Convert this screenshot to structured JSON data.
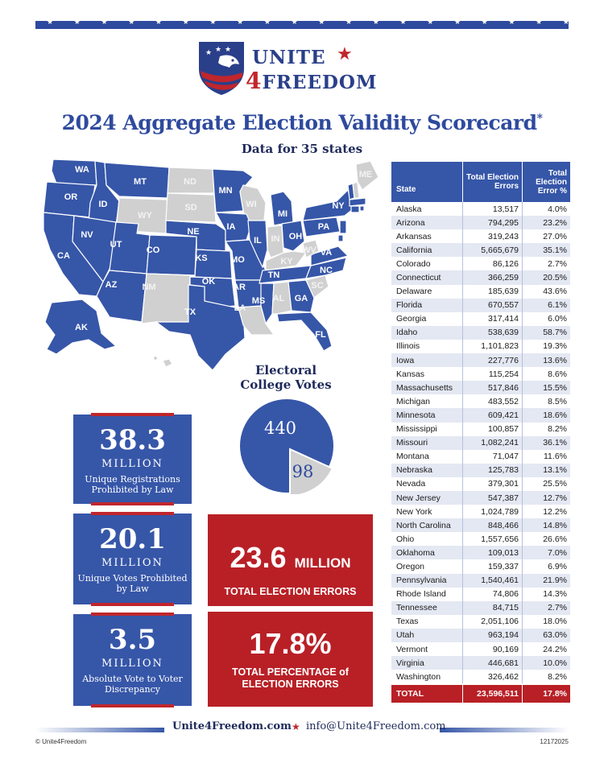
{
  "header": {
    "stars": "★ ★ ★ ★ ★ ★ ★ ★ ★ ★ ★ ★ ★ ★ ★ ★ ★ ★ ★ ★ ★ ★ ★ ★ ★ ★ ★ ★ ★ ★ ★ ★ ★",
    "logo_line1": "UNITE",
    "logo_star": "★",
    "logo_four": "4",
    "logo_line2": "FREEDOM"
  },
  "title": "2024 Aggregate Election Validity Scorecard",
  "title_asterisk": "*",
  "subtitle": "Data for 35 states",
  "colors": {
    "blue": "#3656a8",
    "red": "#b82026",
    "grey": "#d0d0d0",
    "navy": "#1e2a5a"
  },
  "map": {
    "labels": {
      "wa": "WA",
      "or": "OR",
      "id": "ID",
      "mt": "MT",
      "nd": "ND",
      "mn": "MN",
      "wy": "WY",
      "sd": "SD",
      "wi": "WI",
      "mi": "MI",
      "ny": "NY",
      "me": "ME",
      "nv": "NV",
      "ut": "UT",
      "co": "CO",
      "ne": "NE",
      "ia": "IA",
      "il": "IL",
      "in": "IN",
      "oh": "OH",
      "pa": "PA",
      "ca": "CA",
      "ks": "KS",
      "mo": "MO",
      "ky": "KY",
      "wv": "WV",
      "va": "VA",
      "nc": "NC",
      "tn": "TN",
      "az": "AZ",
      "nm": "NM",
      "ok": "OK",
      "ar": "AR",
      "sc": "SC",
      "tx": "TX",
      "la": "LA",
      "ms": "MS",
      "al": "AL",
      "ga": "GA",
      "fl": "FL",
      "ak": "AK",
      "hi": "HI"
    }
  },
  "electoral": {
    "title_line1": "Electoral",
    "title_line2": "College Votes",
    "value_a": "440",
    "value_b": "98",
    "votes": [
      440,
      98
    ]
  },
  "stats": [
    {
      "number": "38.3",
      "unit": "MILLION",
      "desc": "Unique Registrations Prohibited by Law"
    },
    {
      "number": "20.1",
      "unit": "MILLION",
      "desc": "Unique Votes Prohibited by Law"
    },
    {
      "number": "3.5",
      "unit": "MILLION",
      "desc": "Absolute Vote to Voter Discrepancy"
    }
  ],
  "highlights": [
    {
      "number": "23.6",
      "suffix": "MILLION",
      "label": "TOTAL ELECTION ERRORS"
    },
    {
      "number": "17.8%",
      "label": "TOTAL PERCENTAGE of ELECTION ERRORS"
    }
  ],
  "table": {
    "headers": {
      "state": "State",
      "errors": "Total Election Errors",
      "pct": "Total Election Error %"
    },
    "rows": [
      [
        "Alaska",
        "13,517",
        "4.0%"
      ],
      [
        "Arizona",
        "794,295",
        "23.2%"
      ],
      [
        "Arkansas",
        "319,243",
        "27.0%"
      ],
      [
        "California",
        "5,665,679",
        "35.1%"
      ],
      [
        "Colorado",
        "86,126",
        "2.7%"
      ],
      [
        "Connecticut",
        "366,259",
        "20.5%"
      ],
      [
        "Delaware",
        "185,639",
        "43.6%"
      ],
      [
        "Florida",
        "670,557",
        "6.1%"
      ],
      [
        "Georgia",
        "317,414",
        "6.0%"
      ],
      [
        "Idaho",
        "538,639",
        "58.7%"
      ],
      [
        "Illinois",
        "1,101,823",
        "19.3%"
      ],
      [
        "Iowa",
        "227,776",
        "13.6%"
      ],
      [
        "Kansas",
        "115,254",
        "8.6%"
      ],
      [
        "Massachusetts",
        "517,846",
        "15.5%"
      ],
      [
        "Michigan",
        "483,552",
        "8.5%"
      ],
      [
        "Minnesota",
        "609,421",
        "18.6%"
      ],
      [
        "Mississippi",
        "100,857",
        "8.2%"
      ],
      [
        "Missouri",
        "1,082,241",
        "36.1%"
      ],
      [
        "Montana",
        "71,047",
        "11.6%"
      ],
      [
        "Nebraska",
        "125,783",
        "13.1%"
      ],
      [
        "Nevada",
        "379,301",
        "25.5%"
      ],
      [
        "New Jersey",
        "547,387",
        "12.7%"
      ],
      [
        "New York",
        "1,024,789",
        "12.2%"
      ],
      [
        "North Carolina",
        "848,466",
        "14.8%"
      ],
      [
        "Ohio",
        "1,557,656",
        "26.6%"
      ],
      [
        "Oklahoma",
        "109,013",
        "7.0%"
      ],
      [
        "Oregon",
        "159,337",
        "6.9%"
      ],
      [
        "Pennsylvania",
        "1,540,461",
        "21.9%"
      ],
      [
        "Rhode Island",
        "74,806",
        "14.3%"
      ],
      [
        "Tennessee",
        "84,715",
        "2.7%"
      ],
      [
        "Texas",
        "2,051,106",
        "18.0%"
      ],
      [
        "Utah",
        "963,194",
        "63.0%"
      ],
      [
        "Vermont",
        "90,169",
        "24.2%"
      ],
      [
        "Virginia",
        "446,681",
        "10.0%"
      ],
      [
        "Washington",
        "326,462",
        "8.2%"
      ]
    ],
    "total": [
      "TOTAL",
      "23,596,511",
      "17.8%"
    ]
  },
  "footer": {
    "website": "Unite4Freedom.com",
    "star": "★",
    "email": "info@Unite4Freedom.com",
    "copyright": "© Unite4Freedom",
    "code": "12172025"
  }
}
